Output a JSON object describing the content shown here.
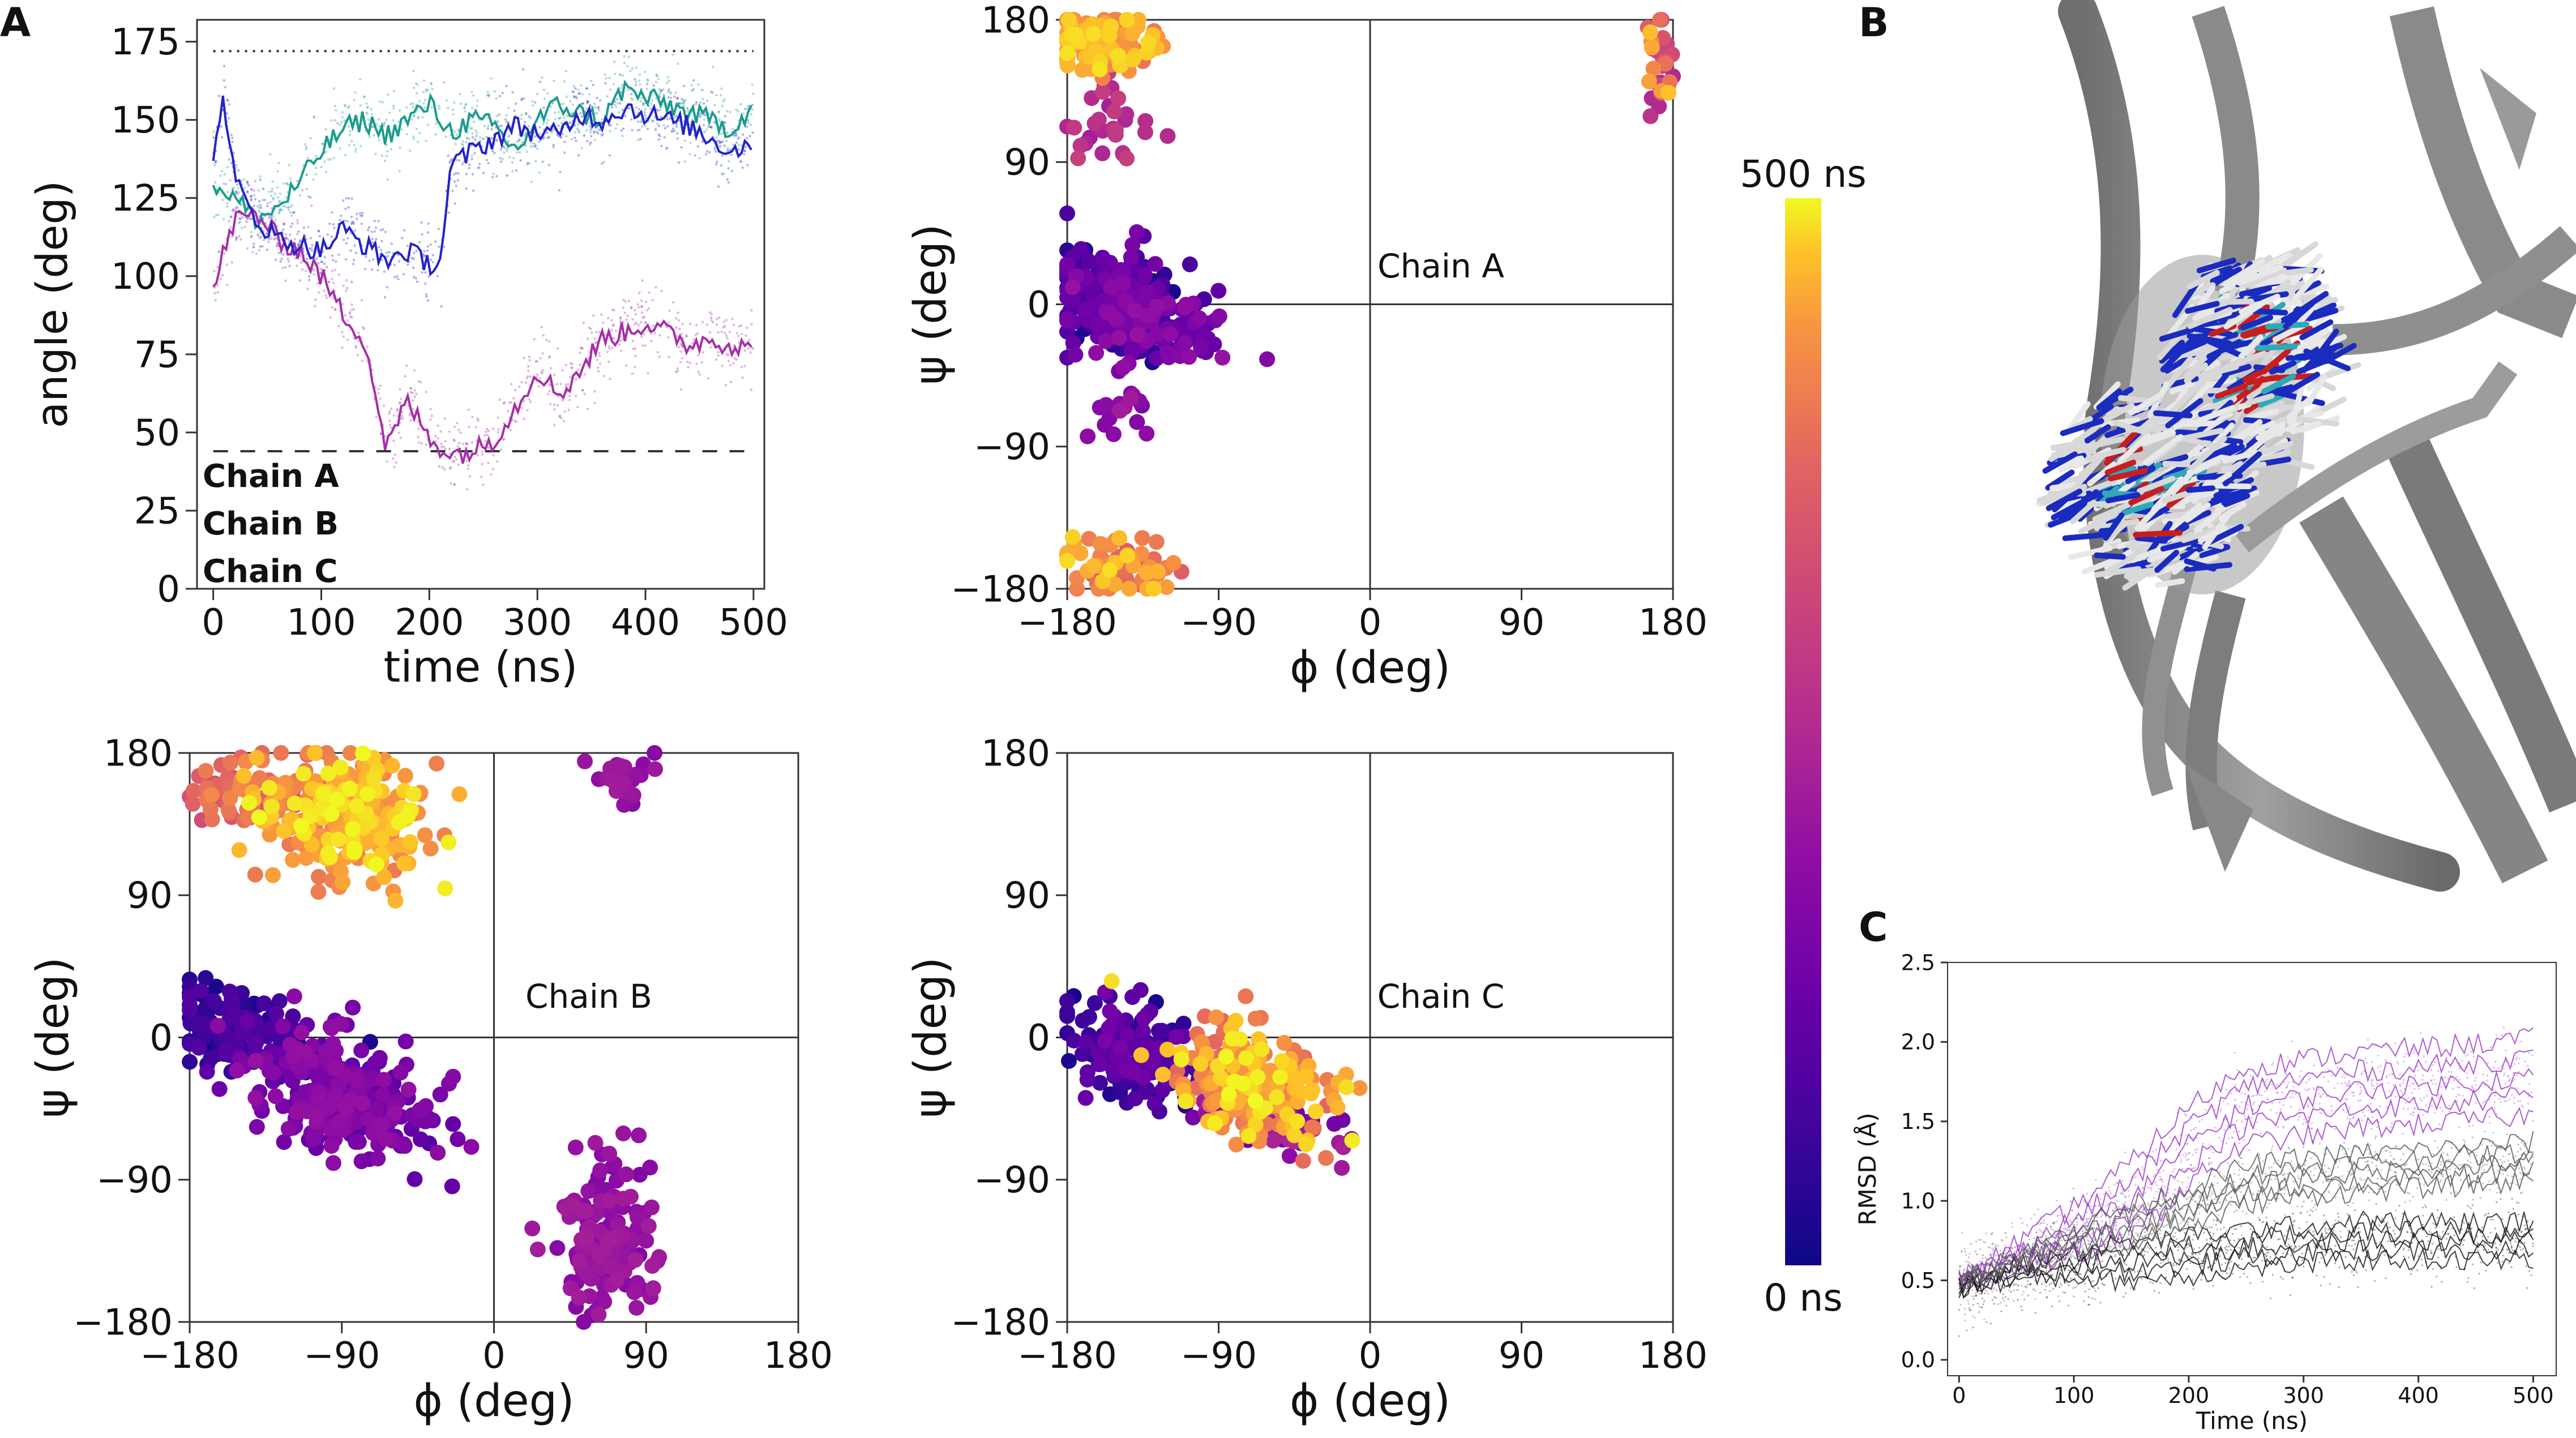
{
  "panel_labels": {
    "a": "A",
    "b": "B",
    "c": "C"
  },
  "chart_data": [
    {
      "id": "angle",
      "type": "line",
      "xlabel": "time (ns)",
      "ylabel": "angle (deg)",
      "xlim": [
        -15,
        510
      ],
      "ylim": [
        0,
        182
      ],
      "xticks": [
        0,
        100,
        200,
        300,
        400,
        500
      ],
      "yticks": [
        0,
        25,
        50,
        75,
        100,
        125,
        150,
        175
      ],
      "hlines": [
        {
          "y": 172,
          "style": "dotted"
        },
        {
          "y": 44,
          "style": "dashed"
        }
      ],
      "legend": [
        {
          "label": "Chain A",
          "color": "#1a9c8c"
        },
        {
          "label": "Chain B",
          "color": "#a52fa8"
        },
        {
          "label": "Chain C",
          "color": "#2323c8"
        }
      ],
      "series": [
        {
          "name": "Chain A",
          "color": "#1a9c8c",
          "x": [
            0,
            20,
            40,
            60,
            80,
            100,
            120,
            140,
            160,
            180,
            200,
            220,
            240,
            260,
            280,
            300,
            320,
            340,
            360,
            380,
            400,
            420,
            440,
            460,
            480,
            500
          ],
          "y": [
            130,
            125,
            118,
            122,
            130,
            140,
            147,
            150,
            145,
            150,
            155,
            146,
            150,
            148,
            140,
            150,
            155,
            152,
            150,
            160,
            157,
            155,
            152,
            150,
            147,
            155
          ]
        },
        {
          "name": "Chain B",
          "color": "#a52fa8",
          "x": [
            0,
            10,
            20,
            40,
            60,
            80,
            100,
            120,
            140,
            160,
            180,
            200,
            220,
            240,
            260,
            280,
            300,
            320,
            340,
            360,
            380,
            400,
            420,
            440,
            460,
            480,
            500
          ],
          "y": [
            95,
            108,
            118,
            120,
            112,
            108,
            100,
            88,
            80,
            45,
            60,
            48,
            43,
            44,
            48,
            58,
            70,
            62,
            70,
            80,
            82,
            85,
            82,
            78,
            80,
            78,
            76
          ]
        },
        {
          "name": "Chain C",
          "color": "#2323c8",
          "x": [
            0,
            10,
            20,
            40,
            60,
            80,
            100,
            120,
            140,
            160,
            180,
            200,
            210,
            220,
            240,
            260,
            280,
            300,
            320,
            340,
            360,
            380,
            400,
            420,
            440,
            460,
            480,
            500
          ],
          "y": [
            140,
            157,
            130,
            118,
            112,
            110,
            108,
            115,
            110,
            105,
            108,
            104,
            105,
            135,
            140,
            144,
            148,
            146,
            145,
            152,
            150,
            154,
            152,
            150,
            148,
            144,
            140,
            143
          ]
        }
      ]
    },
    {
      "id": "rama-a",
      "type": "scatter",
      "annotation": "Chain A",
      "xlabel": "ϕ (deg)",
      "ylabel": "ψ (deg)",
      "xlim": [
        -180,
        180
      ],
      "ylim": [
        -180,
        180
      ],
      "xticks": [
        -180,
        -90,
        0,
        90,
        180
      ],
      "yticks": [
        -180,
        -90,
        0,
        90,
        180
      ],
      "clusters": [
        {
          "phi": -150,
          "psi": 5,
          "sphi": 18,
          "spsi": 16,
          "t0": 0.02,
          "t1": 0.3,
          "n": 230,
          "ang": -0.35
        },
        {
          "phi": -135,
          "psi": -8,
          "sphi": 22,
          "spsi": 12,
          "t0": 0.15,
          "t1": 0.4,
          "n": 150,
          "ang": -0.4
        },
        {
          "phi": -150,
          "psi": -65,
          "sphi": 10,
          "spsi": 10,
          "t0": 0.3,
          "t1": 0.45,
          "n": 18,
          "ang": 0
        },
        {
          "phi": -160,
          "psi": 165,
          "sphi": 18,
          "spsi": 10,
          "t0": 0.8,
          "t1": 0.98,
          "n": 120,
          "ang": 0
        },
        {
          "phi": -160,
          "psi": 115,
          "sphi": 12,
          "spsi": 15,
          "t0": 0.45,
          "t1": 0.6,
          "n": 30,
          "ang": 0
        },
        {
          "phi": -150,
          "psi": -165,
          "sphi": 16,
          "spsi": 10,
          "t0": 0.7,
          "t1": 0.98,
          "n": 70,
          "ang": 0
        },
        {
          "phi": 173,
          "psi": 150,
          "sphi": 4,
          "spsi": 18,
          "t0": 0.45,
          "t1": 0.95,
          "n": 30,
          "ang": 0
        }
      ]
    },
    {
      "id": "rama-b",
      "type": "scatter",
      "annotation": "Chain B",
      "xlabel": "ϕ (deg)",
      "ylabel": "ψ (deg)",
      "xlim": [
        -180,
        180
      ],
      "ylim": [
        -180,
        180
      ],
      "xticks": [
        -180,
        -90,
        0,
        90,
        180
      ],
      "yticks": [
        -180,
        -90,
        0,
        90,
        180
      ],
      "clusters": [
        {
          "phi": -150,
          "psi": 5,
          "sphi": 20,
          "spsi": 12,
          "t0": 0.02,
          "t1": 0.2,
          "n": 150,
          "ang": -0.3
        },
        {
          "phi": -90,
          "psi": -35,
          "sphi": 30,
          "spsi": 16,
          "t0": 0.2,
          "t1": 0.4,
          "n": 280,
          "ang": -0.35
        },
        {
          "phi": 65,
          "psi": -130,
          "sphi": 14,
          "spsi": 25,
          "t0": 0.33,
          "t1": 0.45,
          "n": 160,
          "ang": 0
        },
        {
          "phi": 70,
          "psi": 160,
          "sphi": 10,
          "spsi": 10,
          "t0": 0.35,
          "t1": 0.45,
          "n": 25,
          "ang": 0
        },
        {
          "phi": -90,
          "psi": 140,
          "sphi": 25,
          "spsi": 18,
          "t0": 0.8,
          "t1": 1.0,
          "n": 280,
          "ang": -0.2
        },
        {
          "phi": -145,
          "psi": 155,
          "sphi": 18,
          "spsi": 10,
          "t0": 0.65,
          "t1": 0.85,
          "n": 60,
          "ang": 0
        }
      ]
    },
    {
      "id": "rama-c",
      "type": "scatter",
      "annotation": "Chain C",
      "xlabel": "ϕ (deg)",
      "ylabel": "ψ (deg)",
      "xlim": [
        -180,
        180
      ],
      "ylim": [
        -180,
        180
      ],
      "xticks": [
        -180,
        -90,
        0,
        90,
        180
      ],
      "yticks": [
        -180,
        -90,
        0,
        90,
        180
      ],
      "clusters": [
        {
          "phi": -140,
          "psi": -10,
          "sphi": 22,
          "spsi": 14,
          "t0": 0.02,
          "t1": 0.3,
          "n": 150,
          "ang": -0.45
        },
        {
          "phi": -70,
          "psi": -30,
          "sphi": 22,
          "spsi": 16,
          "t0": 0.75,
          "t1": 1.0,
          "n": 250,
          "ang": -0.55
        },
        {
          "phi": -60,
          "psi": -50,
          "sphi": 24,
          "spsi": 12,
          "t0": 0.25,
          "t1": 0.5,
          "n": 60,
          "ang": -0.55
        }
      ]
    },
    {
      "id": "colorbar",
      "type": "colorbar",
      "colormap": "plasma",
      "top_label": "500 ns",
      "bottom_label": "0 ns",
      "range": [
        0,
        500
      ]
    },
    {
      "id": "rmsd",
      "type": "line",
      "xlabel": "Time (ns)",
      "ylabel": "RMSD (Å)",
      "xlim": [
        -10,
        520
      ],
      "ylim": [
        -0.1,
        2.5
      ],
      "xticks": [
        0,
        100,
        200,
        300,
        400,
        500
      ],
      "yticks": [
        0.0,
        0.5,
        1.0,
        1.5,
        2.0,
        2.5
      ],
      "series": [
        {
          "name": "group-purple",
          "color": "#9a33cc",
          "x": [
            0,
            50,
            100,
            150,
            200,
            250,
            300,
            350,
            400,
            450,
            500
          ],
          "y": [
            0.5,
            0.65,
            0.8,
            1.0,
            1.35,
            1.6,
            1.65,
            1.7,
            1.72,
            1.75,
            1.78
          ]
        },
        {
          "name": "group-black",
          "color": "#111111",
          "x": [
            0,
            50,
            100,
            150,
            200,
            250,
            300,
            350,
            400,
            450,
            500
          ],
          "y": [
            0.45,
            0.55,
            0.6,
            0.62,
            0.65,
            0.7,
            0.72,
            0.75,
            0.75,
            0.74,
            0.75
          ]
        },
        {
          "name": "group-grey",
          "color": "#555555",
          "x": [
            0,
            50,
            100,
            150,
            200,
            250,
            300,
            350,
            400,
            450,
            500
          ],
          "y": [
            0.5,
            0.62,
            0.75,
            0.85,
            0.95,
            1.1,
            1.15,
            1.18,
            1.2,
            1.22,
            1.25
          ]
        }
      ]
    }
  ]
}
